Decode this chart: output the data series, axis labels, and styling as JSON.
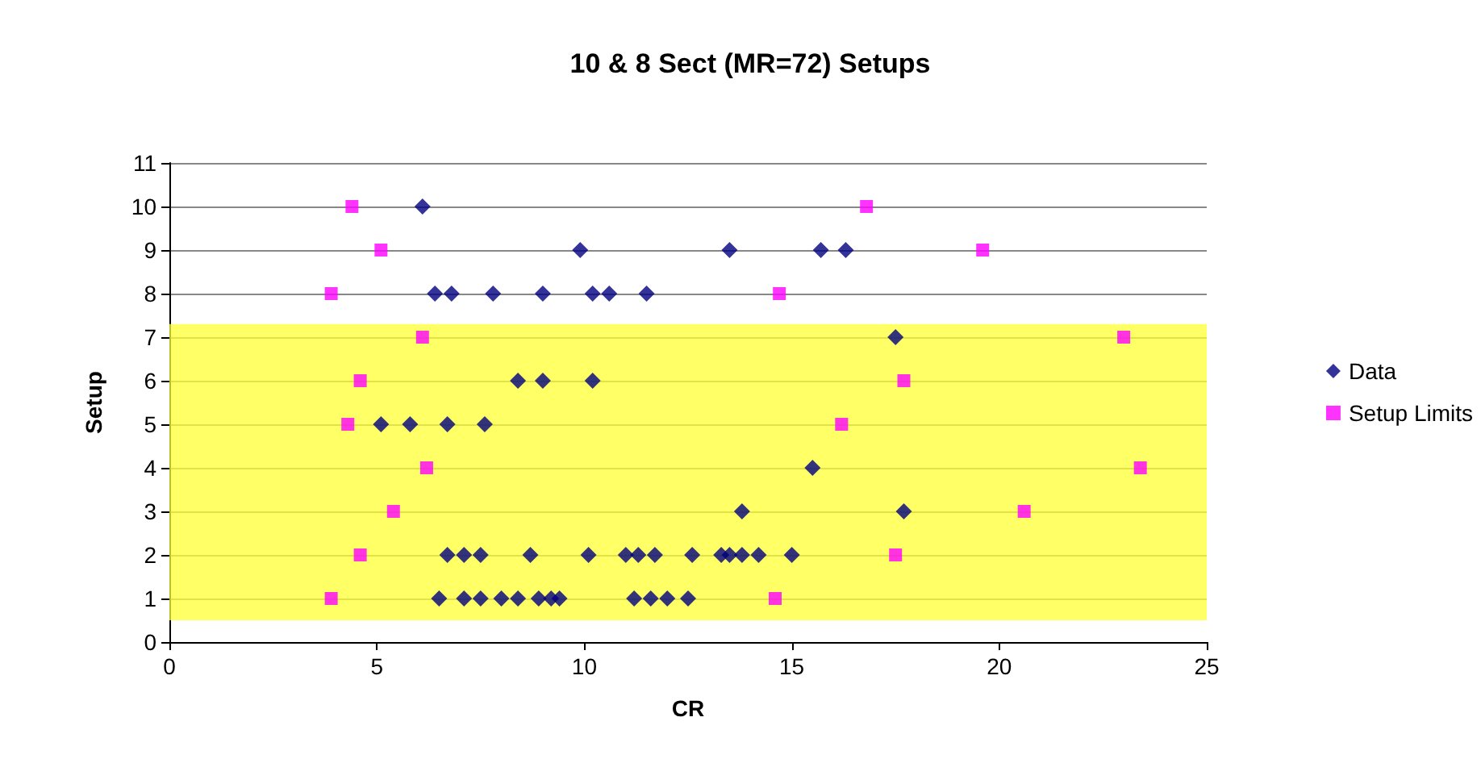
{
  "chart_data": {
    "type": "scatter",
    "title": "10 & 8 Sect (MR=72) Setups",
    "xlabel": "CR",
    "ylabel": "Setup",
    "series": [
      {
        "name": "Data",
        "color": "#000080",
        "marker": "diamond",
        "x": [
          6.1,
          9.9,
          13.5,
          15.7,
          16.3,
          6.4,
          6.8,
          7.8,
          9.0,
          10.2,
          10.6,
          11.5,
          17.5,
          8.4,
          9.0,
          10.2,
          5.1,
          5.8,
          6.7,
          7.6,
          15.5,
          13.8,
          17.7,
          6.7,
          7.1,
          7.5,
          8.7,
          10.1,
          11.0,
          11.3,
          11.7,
          12.6,
          13.3,
          13.5,
          13.8,
          14.2,
          15.0,
          6.5,
          7.1,
          7.5,
          8.0,
          8.4,
          8.9,
          9.2,
          9.4,
          11.2,
          11.6,
          12.0,
          12.5
        ],
        "values": [
          10,
          9,
          9,
          9,
          9,
          8,
          8,
          8,
          8,
          8,
          8,
          8,
          7,
          6,
          6,
          6,
          5,
          5,
          5,
          5,
          4,
          3,
          3,
          2,
          2,
          2,
          2,
          2,
          2,
          2,
          2,
          2,
          2,
          2,
          2,
          2,
          2,
          1,
          1,
          1,
          1,
          1,
          1,
          1,
          1,
          1,
          1,
          1,
          1
        ]
      },
      {
        "name": "Setup Limits",
        "color": "#ff00ff",
        "marker": "square",
        "x": [
          4.4,
          16.8,
          5.1,
          19.6,
          3.9,
          14.7,
          6.1,
          23.0,
          4.6,
          17.7,
          4.3,
          16.2,
          6.2,
          23.4,
          5.4,
          20.6,
          4.6,
          17.5,
          3.9,
          14.6
        ],
        "values": [
          10,
          10,
          9,
          9,
          8,
          8,
          7,
          7,
          6,
          6,
          5,
          5,
          4,
          4,
          3,
          3,
          2,
          2,
          1,
          1
        ]
      }
    ],
    "xlim": [
      0,
      25
    ],
    "xticks": [
      0,
      5,
      10,
      15,
      20,
      25
    ],
    "ylim": [
      0,
      11
    ],
    "yticks": [
      0,
      1,
      2,
      3,
      4,
      5,
      6,
      7,
      8,
      9,
      10,
      11
    ],
    "bands": [
      {
        "axis": "y",
        "from": 0.5,
        "to": 7.3,
        "color": "#ffff33"
      }
    ],
    "grid": "y",
    "legend": "right"
  }
}
